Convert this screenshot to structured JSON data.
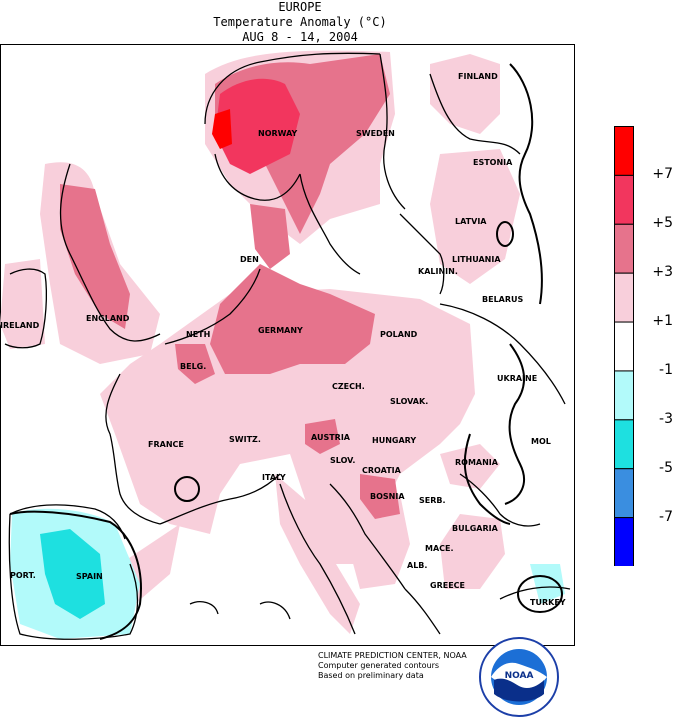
{
  "header": {
    "region": "EUROPE",
    "variable": "Temperature Anomaly (°C)",
    "period": "AUG 8 - 14, 2004"
  },
  "legend": {
    "labels": [
      "+7",
      "+5",
      "+3",
      "+1",
      "-1",
      "-3",
      "-5",
      "-7"
    ],
    "bins": [
      {
        "range": "> +7",
        "color": "#ff0000"
      },
      {
        "range": "+5 to +7",
        "color": "#f2365e"
      },
      {
        "range": "+3 to +5",
        "color": "#e6738c"
      },
      {
        "range": "+1 to +3",
        "color": "#f8cfdb"
      },
      {
        "range": "-1 to +1",
        "color": "#ffffff"
      },
      {
        "range": "-3 to -1",
        "color": "#b2fafa"
      },
      {
        "range": "-5 to -3",
        "color": "#1ee0e0"
      },
      {
        "range": "-7 to -5",
        "color": "#3a8ee0"
      },
      {
        "range": "< -7",
        "color": "#0000ff"
      }
    ]
  },
  "labels": {
    "finland": "FINLAND",
    "norway": "NORWAY",
    "sweden": "SWEDEN",
    "estonia": "ESTONIA",
    "latvia": "LATVIA",
    "lithuania": "LITHUANIA",
    "kaliningrad": "KALININ.",
    "belarus": "BELARUS",
    "denmark": "DEN",
    "ireland": "IRELAND",
    "england": "ENGLAND",
    "netherlands": "NETH",
    "belgium": "BELG.",
    "germany": "GERMANY",
    "poland": "POLAND",
    "ukraine": "UKRAINE",
    "czech": "CZECH.",
    "slovakia": "SLOVAK.",
    "france": "FRANCE",
    "switzerland": "SWITZ.",
    "austria": "AUSTRIA",
    "hungary": "HUNGARY",
    "moldova": "MOL",
    "slovenia": "SLOV.",
    "croatia": "CROATIA",
    "romania": "ROMANIA",
    "italy": "ITALY",
    "bosnia": "BOSNIA",
    "serbia": "SERB.",
    "bulgaria": "BULGARIA",
    "portugal": "PORT.",
    "spain": "SPAIN",
    "macedonia": "MACE.",
    "albania": "ALB.",
    "greece": "GREECE",
    "turkey": "TURKEY"
  },
  "credit": {
    "line1": "CLIMATE PREDICTION CENTER, NOAA",
    "line2": "Computer generated contours",
    "line3": "Based on preliminary data"
  },
  "logo": {
    "text": "NOAA",
    "icon": "noaa-logo-icon"
  }
}
